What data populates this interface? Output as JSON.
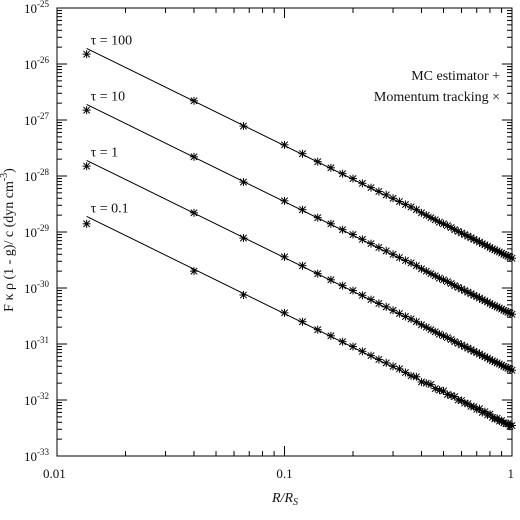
{
  "chart_data": {
    "type": "scatter",
    "xlabel": "R/R",
    "xlabel_sub": "S",
    "ylabel": "F κ ρ (1 - g)/ c (dyn cm",
    "ylabel_sup": "-3",
    "ylabel_end": ")",
    "xscale": "log",
    "yscale": "log",
    "xlim": [
      0.01,
      1
    ],
    "ylim": [
      1e-33,
      1e-25
    ],
    "grid": false,
    "legend_position": "top-right",
    "legend": [
      {
        "label": "MC estimator +",
        "marker": "+"
      },
      {
        "label": "Momentum tracking ×",
        "marker": "x"
      }
    ],
    "x_ticks": [
      {
        "value": 0.01,
        "label": "0.01"
      },
      {
        "value": 0.1,
        "label": "0.1"
      },
      {
        "value": 1,
        "label": "1"
      }
    ],
    "y_ticks": [
      {
        "exp": -33,
        "base": "10",
        "sup": "-33"
      },
      {
        "exp": -32,
        "base": "10",
        "sup": "-32"
      },
      {
        "exp": -31,
        "base": "10",
        "sup": "-31"
      },
      {
        "exp": -30,
        "base": "10",
        "sup": "-30"
      },
      {
        "exp": -29,
        "base": "10",
        "sup": "-29"
      },
      {
        "exp": -28,
        "base": "10",
        "sup": "-28"
      },
      {
        "exp": -27,
        "base": "10",
        "sup": "-27"
      },
      {
        "exp": -26,
        "base": "10",
        "sup": "-26"
      },
      {
        "exp": -25,
        "base": "10",
        "sup": "-25"
      }
    ],
    "x_samples": [
      0.0135,
      0.04,
      0.066,
      0.1,
      0.12,
      0.14,
      0.16,
      0.18,
      0.2,
      0.22,
      0.24,
      0.26,
      0.28,
      0.3,
      0.32,
      0.34,
      0.36,
      0.38,
      0.4,
      0.42,
      0.44,
      0.46,
      0.48,
      0.5,
      0.52,
      0.54,
      0.56,
      0.58,
      0.6,
      0.62,
      0.64,
      0.66,
      0.68,
      0.7,
      0.72,
      0.74,
      0.76,
      0.78,
      0.8,
      0.82,
      0.84,
      0.86,
      0.88,
      0.9,
      0.92,
      0.94,
      0.96,
      0.98,
      1.0
    ],
    "series": [
      {
        "name": "τ = 100",
        "line": {
          "x": [
            0.0135,
            1
          ],
          "y": [
            1.9e-26,
            3.5e-30
          ]
        },
        "values": [
          1.5e-26,
          2.2e-27,
          7.8e-28,
          3.6e-28,
          2.5e-28,
          1.8e-28,
          1.4e-28,
          1.1e-28,
          9e-29,
          7.4e-29,
          6.2e-29,
          5.3e-29,
          4.6e-29,
          4e-29,
          3.5e-29,
          3.1e-29,
          2.8e-29,
          2.5e-29,
          2.2e-29,
          2e-29,
          1.8e-29,
          1.65e-29,
          1.5e-29,
          1.4e-29,
          1.3e-29,
          1.2e-29,
          1.1e-29,
          1.03e-29,
          9.6e-30,
          9e-30,
          8.4e-30,
          7.9e-30,
          7.4e-30,
          7e-30,
          6.6e-30,
          6.2e-30,
          5.9e-30,
          5.6e-30,
          5.3e-30,
          5e-30,
          4.8e-30,
          4.6e-30,
          4.4e-30,
          4.2e-30,
          4e-30,
          3.85e-30,
          3.7e-30,
          3.55e-30,
          3.4e-30
        ]
      },
      {
        "name": "τ = 10",
        "line": {
          "x": [
            0.0135,
            1
          ],
          "y": [
            1.9e-27,
            3.5e-31
          ]
        },
        "values": [
          1.5e-27,
          2.2e-28,
          7.8e-29,
          3.6e-29,
          2.5e-29,
          1.8e-29,
          1.4e-29,
          1.1e-29,
          9e-30,
          7.4e-30,
          6.2e-30,
          5.3e-30,
          4.6e-30,
          4e-30,
          3.5e-30,
          3.1e-30,
          2.8e-30,
          2.5e-30,
          2.2e-30,
          2e-30,
          1.8e-30,
          1.65e-30,
          1.5e-30,
          1.4e-30,
          1.3e-30,
          1.2e-30,
          1.1e-30,
          1.03e-30,
          9.6e-31,
          9e-31,
          8.4e-31,
          7.9e-31,
          7.4e-31,
          7e-31,
          6.6e-31,
          6.2e-31,
          5.9e-31,
          5.6e-31,
          5.3e-31,
          5e-31,
          4.8e-31,
          4.6e-31,
          4.4e-31,
          4.2e-31,
          4e-31,
          3.85e-31,
          3.7e-31,
          3.55e-31,
          3.4e-31
        ]
      },
      {
        "name": "τ = 1",
        "line": {
          "x": [
            0.0135,
            1
          ],
          "y": [
            1.9e-28,
            3.5e-32
          ]
        },
        "values": [
          1.5e-28,
          2.2e-29,
          7.8e-30,
          3.6e-30,
          2.5e-30,
          1.8e-30,
          1.4e-30,
          1.1e-30,
          9e-31,
          7.4e-31,
          6.2e-31,
          5.3e-31,
          4.6e-31,
          4e-31,
          3.5e-31,
          3.1e-31,
          2.8e-31,
          2.5e-31,
          2.2e-31,
          2e-31,
          1.8e-31,
          1.65e-31,
          1.5e-31,
          1.4e-31,
          1.3e-31,
          1.2e-31,
          1.1e-31,
          1.03e-31,
          9.6e-32,
          9e-32,
          8.4e-32,
          7.9e-32,
          7.4e-32,
          7e-32,
          6.6e-32,
          6.2e-32,
          5.9e-32,
          5.6e-32,
          5.3e-32,
          5e-32,
          4.8e-32,
          4.6e-32,
          4.4e-32,
          4.2e-32,
          4e-32,
          3.85e-32,
          3.7e-32,
          3.55e-32,
          3.4e-32
        ]
      },
      {
        "name": "τ = 0.1",
        "line": {
          "x": [
            0.0135,
            1
          ],
          "y": [
            1.9e-29,
            3.5e-33
          ]
        },
        "values": [
          1.4e-29,
          2e-30,
          7.5e-31,
          3.6e-31,
          2.5e-31,
          1.8e-31,
          1.4e-31,
          1.1e-31,
          9e-32,
          7.4e-32,
          6.2e-32,
          5.3e-32,
          4.6e-32,
          4e-32,
          3.6e-32,
          3.1e-32,
          2.7e-32,
          2.6e-32,
          2.1e-32,
          2e-32,
          1.9e-32,
          1.6e-32,
          1.5e-32,
          1.45e-32,
          1.25e-32,
          1.2e-32,
          1.15e-32,
          1e-32,
          9.8e-33,
          8.8e-33,
          8.6e-33,
          7.7e-33,
          7.6e-33,
          6.8e-33,
          7e-33,
          6e-33,
          6.2e-33,
          5.4e-33,
          5.6e-33,
          4.9e-33,
          4.6e-33,
          4.7e-33,
          4.2e-33,
          4.3e-33,
          3.9e-33,
          3.8e-33,
          3.8e-33,
          3.4e-33,
          3.5e-33
        ]
      }
    ]
  }
}
